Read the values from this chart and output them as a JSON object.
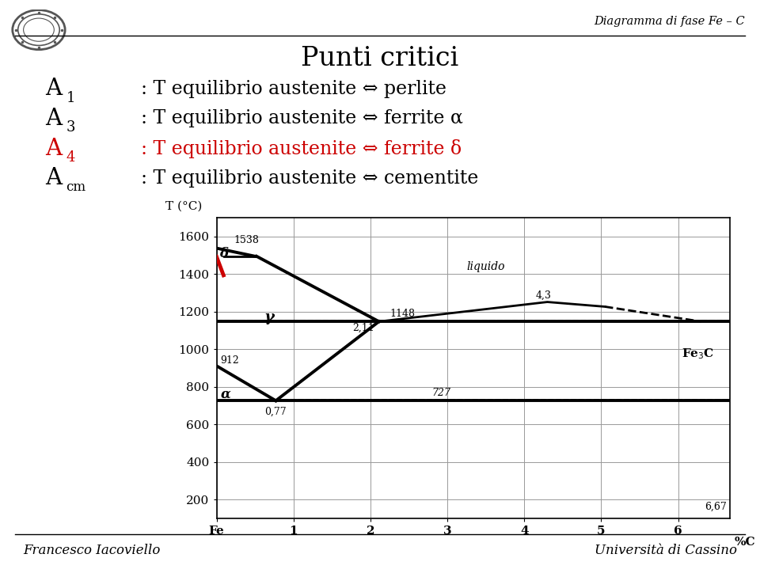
{
  "title": "Punti critici",
  "header_right": "Diagramma di fase Fe – C",
  "background_color": "#ffffff",
  "text_color": "#000000",
  "red_color": "#cc0000",
  "footer_left": "Francesco Iacoviello",
  "footer_right": "Università di Cassino",
  "bullet_lines": [
    {
      "letter": "A",
      "sub": "1",
      "text": ": T equilibrio austenite ⇔ perlite",
      "color": "#000000"
    },
    {
      "letter": "A",
      "sub": "3",
      "text": ": T equilibrio austenite ⇔ ferrite α",
      "color": "#000000"
    },
    {
      "letter": "A",
      "sub": "4",
      "text": ": T equilibrio austenite ⇔ ferrite δ",
      "color": "#cc0000"
    },
    {
      "letter": "A",
      "sub": "cm",
      "text": ": T equilibrio austenite ⇔ cementite",
      "color": "#000000"
    }
  ],
  "chart": {
    "xlim": [
      0,
      6.67
    ],
    "ylim": [
      100,
      1700
    ],
    "xticks": [
      0,
      1,
      2,
      3,
      4,
      5,
      6
    ],
    "xticklabels": [
      "Fe",
      "1",
      "2",
      "3",
      "4",
      "5",
      "6"
    ],
    "yticks": [
      200,
      400,
      600,
      800,
      1000,
      1200,
      1400,
      1600
    ],
    "grid_color": "#999999"
  }
}
